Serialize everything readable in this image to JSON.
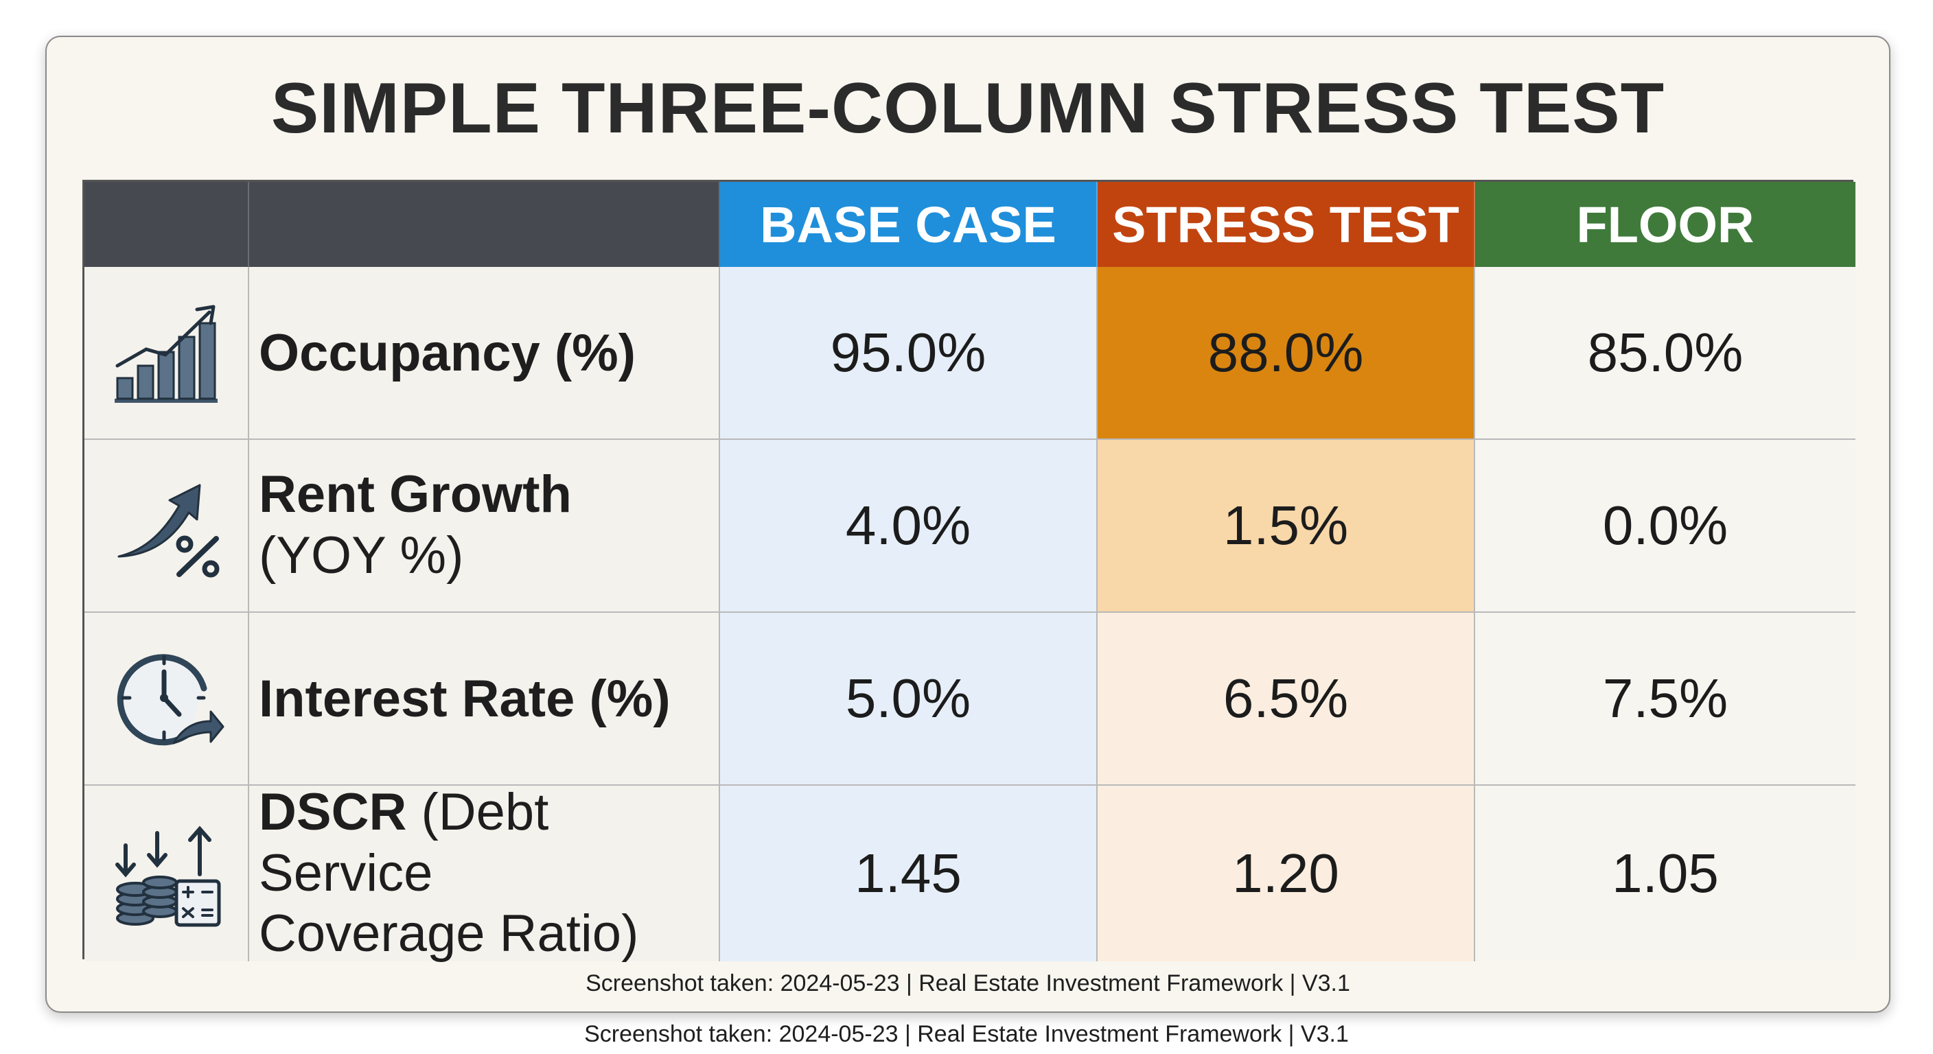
{
  "title": "SIMPLE THREE-COLUMN STRESS TEST",
  "columns": {
    "base": "BASE CASE",
    "stress": "STRESS TEST",
    "floor": "FLOOR"
  },
  "rows": [
    {
      "icon": "bar-chart-up-icon",
      "label": "Occupancy (%)",
      "base": "95.0%",
      "stress": "88.0%",
      "floor": "85.0%"
    },
    {
      "icon": "growth-arrow-percent-icon",
      "label_main": "Rent Growth",
      "label_sub": "(YOY %)",
      "base": "4.0%",
      "stress": "1.5%",
      "floor": "0.0%"
    },
    {
      "icon": "clock-arrow-icon",
      "label": "Interest Rate (%)",
      "base": "5.0%",
      "stress": "6.5%",
      "floor": "7.5%"
    },
    {
      "icon": "coins-calculator-icon",
      "label_strong": "DSCR",
      "label_rest_line1": " (Debt Service",
      "label_line2": "Coverage Ratio)",
      "base": "1.45",
      "stress": "1.20",
      "floor": "1.05"
    }
  ],
  "footer": "Screenshot taken: 2024-05-23 | Real Estate Investment Framework | V3.1",
  "colors": {
    "header_dark": "#464a50",
    "base_header": "#1f8fdb",
    "stress_header": "#c1440f",
    "floor_header": "#3f7a3a",
    "stress_highlight": "#d9850f",
    "icon": "#3f556b"
  }
}
